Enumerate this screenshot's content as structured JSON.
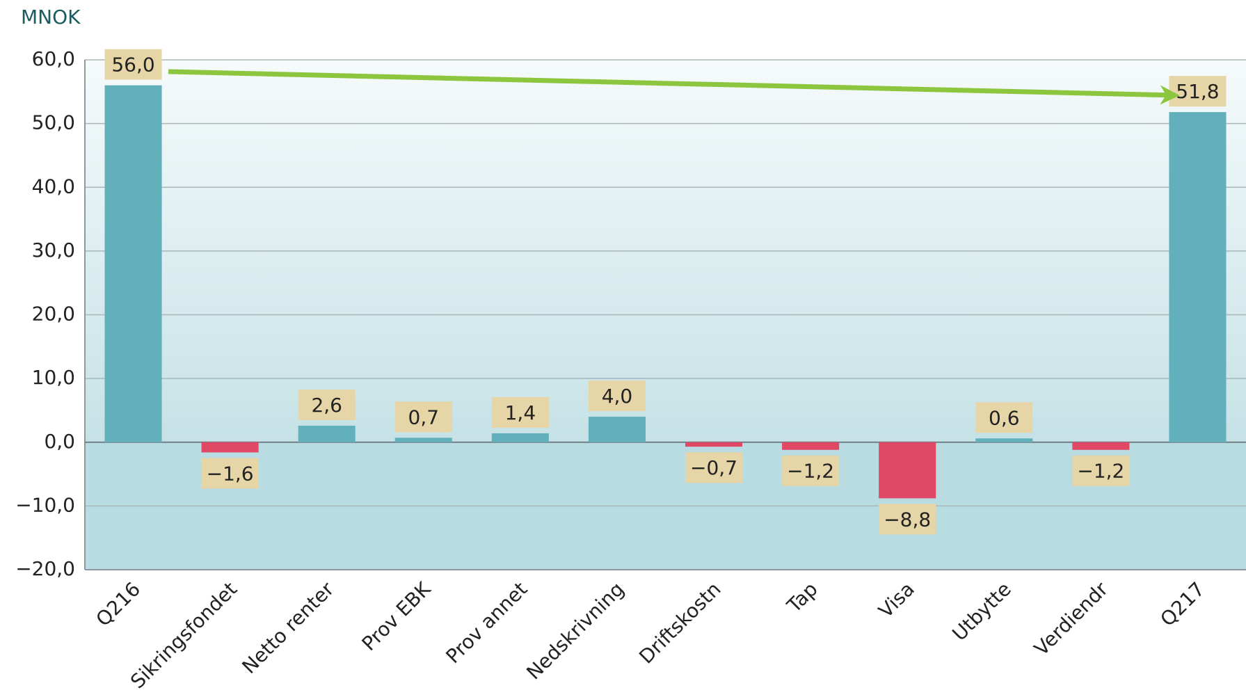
{
  "chart_data": {
    "type": "bar",
    "y_label": "MNOK",
    "categories": [
      "Q216",
      "Sikringsfondet",
      "Netto renter",
      "Prov EBK",
      "Prov annet",
      "Nedskrivning",
      "Driftskostn",
      "Tap",
      "Visa",
      "Utbytte",
      "Verdiendr",
      "Q217"
    ],
    "values": [
      56.0,
      -1.6,
      2.6,
      0.7,
      1.4,
      4.0,
      -0.7,
      -1.2,
      -8.8,
      0.6,
      -1.2,
      51.8
    ],
    "value_labels": [
      "56,0",
      "−1,6",
      "2,6",
      "0,7",
      "1,4",
      "4,0",
      "−0,7",
      "−1,2",
      "−8,8",
      "0,6",
      "−1,2",
      "51,8"
    ],
    "positive_color": "#62b0bb",
    "negative_color": "#e04865",
    "ylim": [
      -20,
      60
    ],
    "yticks": [
      {
        "value": -20,
        "label": "−20,0"
      },
      {
        "value": -10,
        "label": "−10,0"
      },
      {
        "value": 0,
        "label": "0,0"
      },
      {
        "value": 10,
        "label": "10,0"
      },
      {
        "value": 20,
        "label": "20,0"
      },
      {
        "value": 30,
        "label": "30,0"
      },
      {
        "value": 40,
        "label": "40,0"
      },
      {
        "value": 50,
        "label": "50,0"
      },
      {
        "value": 60,
        "label": "60,0"
      }
    ],
    "grid": true
  }
}
